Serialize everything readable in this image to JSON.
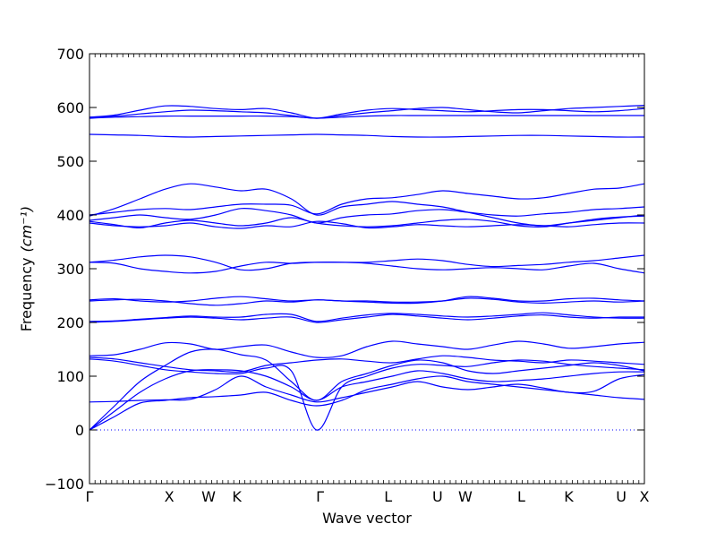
{
  "chart_data": {
    "type": "line",
    "title": "",
    "xlabel": "Wave vector",
    "ylabel": "Frequency",
    "ylabel_unit": "(cm⁻¹)",
    "ylim": [
      -100,
      700
    ],
    "yticks": [
      -100,
      0,
      100,
      200,
      300,
      400,
      500,
      600,
      700
    ],
    "grid": false,
    "legend": "none",
    "x": [
      0.0,
      0.5,
      1.0,
      1.5,
      2.0,
      2.5,
      3.0,
      3.5,
      4.0,
      4.5,
      5.0,
      5.5,
      6.0,
      6.5,
      7.0,
      7.5,
      8.0,
      8.5,
      9.0,
      9.5,
      10.0,
      10.5,
      11.0
    ],
    "xlim": [
      0,
      11
    ],
    "high_symmetry_points": [
      {
        "label": "Γ",
        "x": 0.0
      },
      {
        "label": "X",
        "x": 1.58
      },
      {
        "label": "W",
        "x": 2.36
      },
      {
        "label": "K",
        "x": 2.92
      },
      {
        "label": "Γ",
        "x": 4.57
      },
      {
        "label": "L",
        "x": 5.92
      },
      {
        "label": "U",
        "x": 6.9
      },
      {
        "label": "W",
        "x": 7.45
      },
      {
        "label": "L",
        "x": 8.56
      },
      {
        "label": "K",
        "x": 9.5
      },
      {
        "label": "U",
        "x": 10.54
      },
      {
        "label": "X",
        "x": 11.0
      }
    ],
    "zero_line": {
      "y": 0,
      "style": "dotted"
    },
    "colors": {
      "bands": "#0000ff",
      "axes": "#000000"
    },
    "series": [
      {
        "values": [
          0,
          25,
          50,
          55,
          60,
          62,
          65,
          70,
          55,
          45,
          55,
          75,
          85,
          95,
          100,
          90,
          85,
          80,
          75,
          70,
          65,
          60,
          57
        ]
      },
      {
        "values": [
          0,
          35,
          70,
          95,
          110,
          112,
          110,
          100,
          80,
          55,
          80,
          90,
          100,
          110,
          105,
          95,
          90,
          92,
          95,
          100,
          105,
          108,
          108
        ]
      },
      {
        "values": [
          0,
          45,
          90,
          120,
          145,
          150,
          140,
          130,
          90,
          55,
          90,
          105,
          120,
          130,
          125,
          110,
          105,
          110,
          115,
          120,
          125,
          120,
          110
        ]
      },
      {
        "values": [
          52,
          53,
          55,
          56,
          57,
          75,
          100,
          80,
          65,
          52,
          60,
          70,
          80,
          90,
          80,
          75,
          80,
          85,
          78,
          70,
          72,
          95,
          103
        ]
      },
      {
        "values": [
          132,
          128,
          120,
          112,
          108,
          105,
          105,
          115,
          110,
          0,
          80,
          100,
          115,
          122,
          120,
          118,
          125,
          130,
          128,
          122,
          118,
          115,
          112
        ]
      },
      {
        "values": [
          135,
          132,
          125,
          118,
          112,
          110,
          108,
          120,
          125,
          130,
          132,
          128,
          125,
          132,
          138,
          135,
          130,
          128,
          125,
          130,
          128,
          125,
          122
        ]
      },
      {
        "values": [
          138,
          140,
          150,
          162,
          160,
          150,
          155,
          158,
          145,
          135,
          138,
          155,
          165,
          160,
          155,
          150,
          158,
          165,
          160,
          152,
          155,
          160,
          163
        ]
      },
      {
        "values": [
          200,
          202,
          205,
          208,
          210,
          208,
          205,
          208,
          210,
          200,
          205,
          210,
          215,
          212,
          208,
          205,
          208,
          212,
          214,
          210,
          208,
          210,
          210
        ]
      },
      {
        "values": [
          202,
          203,
          206,
          209,
          212,
          210,
          210,
          215,
          215,
          202,
          208,
          214,
          217,
          215,
          212,
          210,
          212,
          215,
          218,
          214,
          210,
          208,
          208
        ]
      },
      {
        "values": [
          240,
          242,
          243,
          240,
          235,
          232,
          235,
          240,
          238,
          242,
          240,
          240,
          238,
          238,
          240,
          245,
          243,
          238,
          236,
          238,
          240,
          238,
          240
        ]
      },
      {
        "values": [
          242,
          244,
          240,
          238,
          240,
          245,
          248,
          244,
          240,
          242,
          240,
          238,
          236,
          236,
          240,
          248,
          245,
          240,
          240,
          244,
          245,
          242,
          240
        ]
      },
      {
        "values": [
          312,
          310,
          300,
          295,
          292,
          295,
          305,
          312,
          310,
          312,
          312,
          310,
          305,
          300,
          298,
          300,
          302,
          300,
          298,
          305,
          310,
          300,
          292
        ]
      },
      {
        "values": [
          312,
          316,
          322,
          325,
          322,
          312,
          298,
          300,
          310,
          312,
          312,
          312,
          315,
          318,
          315,
          308,
          304,
          306,
          308,
          312,
          315,
          320,
          325
        ]
      },
      {
        "values": [
          400,
          405,
          410,
          412,
          410,
          415,
          420,
          420,
          418,
          402,
          420,
          430,
          432,
          438,
          445,
          440,
          435,
          430,
          432,
          440,
          448,
          450,
          458
        ]
      },
      {
        "values": [
          390,
          395,
          400,
          395,
          392,
          400,
          412,
          408,
          400,
          385,
          395,
          400,
          402,
          408,
          410,
          405,
          400,
          398,
          402,
          405,
          410,
          412,
          415
        ]
      },
      {
        "values": [
          398,
          412,
          430,
          448,
          458,
          452,
          445,
          448,
          430,
          400,
          415,
          420,
          425,
          420,
          415,
          405,
          395,
          385,
          380,
          385,
          390,
          395,
          400
        ]
      },
      {
        "values": [
          388,
          382,
          376,
          385,
          390,
          385,
          380,
          385,
          395,
          385,
          380,
          378,
          380,
          385,
          390,
          392,
          388,
          380,
          378,
          385,
          392,
          396,
          398
        ]
      },
      {
        "values": [
          385,
          380,
          378,
          380,
          385,
          378,
          375,
          380,
          378,
          388,
          384,
          376,
          378,
          382,
          380,
          378,
          380,
          382,
          380,
          378,
          382,
          385,
          385
        ]
      },
      {
        "values": [
          550,
          549,
          548,
          546,
          545,
          546,
          547,
          548,
          549,
          550,
          549,
          548,
          546,
          545,
          545,
          546,
          547,
          548,
          548,
          547,
          546,
          545,
          545
        ]
      },
      {
        "values": [
          580,
          582,
          583,
          584,
          584,
          584,
          584,
          584,
          583,
          580,
          582,
          584,
          585,
          585,
          585,
          585,
          585,
          585,
          585,
          585,
          585,
          585,
          585
        ]
      },
      {
        "values": [
          582,
          584,
          588,
          592,
          595,
          594,
          592,
          590,
          585,
          580,
          588,
          595,
          598,
          596,
          594,
          592,
          594,
          596,
          596,
          594,
          592,
          594,
          598
        ]
      },
      {
        "values": [
          582,
          586,
          595,
          603,
          602,
          598,
          596,
          598,
          590,
          580,
          585,
          590,
          594,
          598,
          600,
          596,
          592,
          590,
          594,
          598,
          600,
          602,
          604
        ]
      }
    ]
  }
}
